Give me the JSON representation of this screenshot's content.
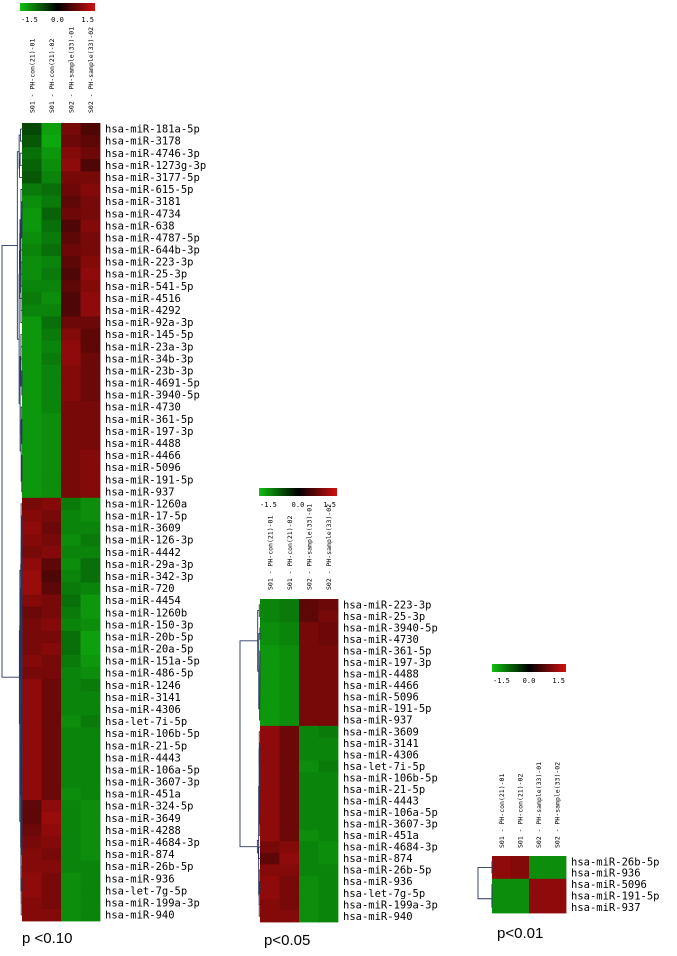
{
  "chart_data": [
    {
      "type": "heatmap",
      "caption": "p <0.10",
      "color_scale": {
        "min": -1.5,
        "mid": 0.0,
        "max": 1.5,
        "tick_labels": [
          "-1.5",
          "0.0",
          "1.5"
        ],
        "low_color": "#10c010",
        "mid_color": "#000000",
        "high_color": "#d01010"
      },
      "columns": [
        "S01 - PH-con(21)-01",
        "S01 - PH-con(21)-02",
        "S02 - PH-sample(33)-01",
        "S02 - PH-sample(33)-02"
      ],
      "rows": [
        "hsa-miR-181a-5p",
        "hsa-miR-3178",
        "hsa-miR-4746-3p",
        "hsa-miR-1273g-3p",
        "hsa-miR-3177-5p",
        "hsa-miR-615-5p",
        "hsa-miR-3181",
        "hsa-miR-4734",
        "hsa-miR-638",
        "hsa-miR-4787-5p",
        "hsa-miR-644b-3p",
        "hsa-miR-223-3p",
        "hsa-miR-25-3p",
        "hsa-miR-541-5p",
        "hsa-miR-4516",
        "hsa-miR-4292",
        "hsa-miR-92a-3p",
        "hsa-miR-145-5p",
        "hsa-miR-23a-3p",
        "hsa-miR-34b-3p",
        "hsa-miR-23b-3p",
        "hsa-miR-4691-5p",
        "hsa-miR-3940-5p",
        "hsa-miR-4730",
        "hsa-miR-361-5p",
        "hsa-miR-197-3p",
        "hsa-miR-4488",
        "hsa-miR-4466",
        "hsa-miR-5096",
        "hsa-miR-191-5p",
        "hsa-miR-937",
        "hsa-miR-1260a",
        "hsa-miR-17-5p",
        "hsa-miR-3609",
        "hsa-miR-126-3p",
        "hsa-miR-4442",
        "hsa-miR-29a-3p",
        "hsa-miR-342-3p",
        "hsa-miR-720",
        "hsa-miR-4454",
        "hsa-miR-1260b",
        "hsa-miR-150-3p",
        "hsa-miR-20b-5p",
        "hsa-miR-20a-5p",
        "hsa-miR-151a-5p",
        "hsa-miR-486-5p",
        "hsa-miR-1246",
        "hsa-miR-3141",
        "hsa-miR-4306",
        "hsa-let-7i-5p",
        "hsa-miR-106b-5p",
        "hsa-miR-21-5p",
        "hsa-miR-4443",
        "hsa-miR-106a-5p",
        "hsa-miR-3607-3p",
        "hsa-miR-451a",
        "hsa-miR-324-5p",
        "hsa-miR-3649",
        "hsa-miR-4288",
        "hsa-miR-4684-3p",
        "hsa-miR-874",
        "hsa-miR-26b-5p",
        "hsa-miR-936",
        "hsa-let-7g-5p",
        "hsa-miR-199a-3p",
        "hsa-miR-940"
      ],
      "values": [
        [
          -0.3,
          -1.1,
          0.6,
          0.3
        ],
        [
          -0.4,
          -1.2,
          0.5,
          0.4
        ],
        [
          -0.6,
          -1.0,
          0.7,
          0.5
        ],
        [
          -0.5,
          -0.9,
          0.8,
          0.3
        ],
        [
          -0.4,
          -0.8,
          0.6,
          0.6
        ],
        [
          -0.7,
          -0.6,
          0.5,
          0.7
        ],
        [
          -0.9,
          -0.7,
          0.4,
          0.6
        ],
        [
          -1.0,
          -0.5,
          0.5,
          0.6
        ],
        [
          -1.0,
          -0.6,
          0.3,
          0.7
        ],
        [
          -0.9,
          -0.7,
          0.4,
          0.6
        ],
        [
          -0.8,
          -0.6,
          0.5,
          0.6
        ],
        [
          -0.9,
          -0.8,
          0.4,
          0.7
        ],
        [
          -0.9,
          -0.7,
          0.3,
          0.8
        ],
        [
          -0.8,
          -0.8,
          0.4,
          0.7
        ],
        [
          -0.7,
          -0.9,
          0.3,
          0.8
        ],
        [
          -0.8,
          -0.8,
          0.3,
          0.8
        ],
        [
          -1.0,
          -0.6,
          0.5,
          0.5
        ],
        [
          -1.0,
          -0.7,
          0.7,
          0.4
        ],
        [
          -1.0,
          -0.8,
          0.8,
          0.4
        ],
        [
          -1.0,
          -0.7,
          0.8,
          0.5
        ],
        [
          -1.0,
          -0.8,
          0.7,
          0.5
        ],
        [
          -1.0,
          -0.8,
          0.7,
          0.5
        ],
        [
          -1.0,
          -0.8,
          0.7,
          0.5
        ],
        [
          -1.0,
          -0.8,
          0.6,
          0.6
        ],
        [
          -1.0,
          -0.9,
          0.6,
          0.6
        ],
        [
          -1.0,
          -0.9,
          0.6,
          0.6
        ],
        [
          -1.0,
          -0.9,
          0.6,
          0.6
        ],
        [
          -1.0,
          -0.9,
          0.6,
          0.7
        ],
        [
          -1.0,
          -0.9,
          0.6,
          0.7
        ],
        [
          -1.0,
          -0.9,
          0.6,
          0.7
        ],
        [
          -1.0,
          -0.9,
          0.6,
          0.7
        ],
        [
          0.6,
          0.7,
          -0.7,
          -0.9
        ],
        [
          0.7,
          0.6,
          -0.8,
          -0.9
        ],
        [
          0.8,
          0.5,
          -0.8,
          -0.8
        ],
        [
          0.7,
          0.6,
          -0.9,
          -0.7
        ],
        [
          0.6,
          0.7,
          -0.8,
          -0.8
        ],
        [
          0.8,
          0.4,
          -0.9,
          -0.6
        ],
        [
          0.9,
          0.3,
          -0.8,
          -0.6
        ],
        [
          0.9,
          0.4,
          -0.7,
          -0.8
        ],
        [
          0.7,
          0.6,
          -0.6,
          -1.0
        ],
        [
          0.5,
          0.6,
          -0.7,
          -1.0
        ],
        [
          0.6,
          0.7,
          -0.8,
          -0.9
        ],
        [
          0.6,
          0.6,
          -0.6,
          -1.1
        ],
        [
          0.6,
          0.7,
          -0.6,
          -1.1
        ],
        [
          0.7,
          0.6,
          -0.7,
          -1.0
        ],
        [
          0.6,
          0.6,
          -0.8,
          -0.9
        ],
        [
          0.8,
          0.5,
          -0.8,
          -0.7
        ],
        [
          0.8,
          0.5,
          -0.8,
          -0.8
        ],
        [
          0.8,
          0.5,
          -0.8,
          -0.8
        ],
        [
          0.8,
          0.5,
          -0.9,
          -0.7
        ],
        [
          0.8,
          0.5,
          -0.8,
          -0.8
        ],
        [
          0.8,
          0.5,
          -0.8,
          -0.8
        ],
        [
          0.8,
          0.5,
          -0.8,
          -0.8
        ],
        [
          0.8,
          0.5,
          -0.8,
          -0.8
        ],
        [
          0.8,
          0.5,
          -0.8,
          -0.8
        ],
        [
          0.8,
          0.5,
          -0.9,
          -0.8
        ],
        [
          0.4,
          0.8,
          -0.8,
          -0.9
        ],
        [
          0.4,
          0.9,
          -0.8,
          -0.9
        ],
        [
          0.5,
          0.8,
          -0.8,
          -0.9
        ],
        [
          0.6,
          0.7,
          -0.8,
          -0.9
        ],
        [
          0.7,
          0.6,
          -0.8,
          -0.9
        ],
        [
          0.7,
          0.7,
          -0.8,
          -0.8
        ],
        [
          0.8,
          0.6,
          -0.9,
          -0.8
        ],
        [
          0.8,
          0.6,
          -0.9,
          -0.8
        ],
        [
          0.7,
          0.6,
          -0.9,
          -0.8
        ],
        [
          0.7,
          0.7,
          -0.9,
          -0.8
        ]
      ]
    },
    {
      "type": "heatmap",
      "caption": "p<0.05",
      "color_scale": {
        "min": -1.5,
        "mid": 0.0,
        "max": 1.5,
        "tick_labels": [
          "-1.5",
          "0.0",
          "1.5"
        ],
        "low_color": "#10c010",
        "mid_color": "#000000",
        "high_color": "#d01010"
      },
      "columns": [
        "S01 - PH-con(21)-01",
        "S01 - PH-con(21)-02",
        "S02 - PH-sample(33)-01",
        "S02 - PH-sample(33)-02"
      ],
      "rows": [
        "hsa-miR-223-3p",
        "hsa-miR-25-3p",
        "hsa-miR-3940-5p",
        "hsa-miR-4730",
        "hsa-miR-361-5p",
        "hsa-miR-197-3p",
        "hsa-miR-4488",
        "hsa-miR-4466",
        "hsa-miR-5096",
        "hsa-miR-191-5p",
        "hsa-miR-937",
        "hsa-miR-3609",
        "hsa-miR-3141",
        "hsa-miR-4306",
        "hsa-let-7i-5p",
        "hsa-miR-106b-5p",
        "hsa-miR-21-5p",
        "hsa-miR-4443",
        "hsa-miR-106a-5p",
        "hsa-miR-3607-3p",
        "hsa-miR-451a",
        "hsa-miR-4684-3p",
        "hsa-miR-874",
        "hsa-miR-26b-5p",
        "hsa-miR-936",
        "hsa-let-7g-5p",
        "hsa-miR-199a-3p",
        "hsa-miR-940"
      ],
      "values": [
        [
          -0.8,
          -0.7,
          0.4,
          0.5
        ],
        [
          -0.8,
          -0.7,
          0.4,
          0.6
        ],
        [
          -0.9,
          -0.8,
          0.6,
          0.5
        ],
        [
          -0.9,
          -0.8,
          0.6,
          0.5
        ],
        [
          -1.0,
          -0.9,
          0.6,
          0.6
        ],
        [
          -1.0,
          -0.9,
          0.6,
          0.6
        ],
        [
          -1.0,
          -0.9,
          0.6,
          0.6
        ],
        [
          -1.0,
          -0.9,
          0.6,
          0.6
        ],
        [
          -1.0,
          -0.9,
          0.6,
          0.6
        ],
        [
          -1.0,
          -0.9,
          0.6,
          0.6
        ],
        [
          -1.0,
          -0.9,
          0.6,
          0.6
        ],
        [
          0.8,
          0.5,
          -0.8,
          -0.7
        ],
        [
          0.8,
          0.5,
          -0.8,
          -0.8
        ],
        [
          0.8,
          0.5,
          -0.8,
          -0.8
        ],
        [
          0.8,
          0.5,
          -0.9,
          -0.7
        ],
        [
          0.8,
          0.5,
          -0.8,
          -0.8
        ],
        [
          0.8,
          0.5,
          -0.8,
          -0.8
        ],
        [
          0.8,
          0.5,
          -0.8,
          -0.8
        ],
        [
          0.8,
          0.5,
          -0.8,
          -0.8
        ],
        [
          0.8,
          0.5,
          -0.8,
          -0.8
        ],
        [
          0.8,
          0.5,
          -0.9,
          -0.8
        ],
        [
          0.6,
          0.7,
          -0.8,
          -0.9
        ],
        [
          0.4,
          0.8,
          -0.8,
          -0.9
        ],
        [
          0.7,
          0.7,
          -0.8,
          -0.8
        ],
        [
          0.8,
          0.6,
          -0.9,
          -0.8
        ],
        [
          0.8,
          0.6,
          -0.9,
          -0.8
        ],
        [
          0.7,
          0.6,
          -0.9,
          -0.8
        ],
        [
          0.7,
          0.7,
          -0.9,
          -0.8
        ]
      ]
    },
    {
      "type": "heatmap",
      "caption": "p<0.01",
      "color_scale": {
        "min": -1.5,
        "mid": 0.0,
        "max": 1.5,
        "tick_labels": [
          "-1.5",
          "0.0",
          "1.5"
        ],
        "low_color": "#10c010",
        "mid_color": "#000000",
        "high_color": "#d01010"
      },
      "columns": [
        "S01 - PH-con(21)-01",
        "S01 - PH-con(21)-02",
        "S02 - PH-sample(33)-01",
        "S02 - PH-sample(33)-02"
      ],
      "rows": [
        "hsa-miR-26b-5p",
        "hsa-miR-936",
        "hsa-miR-5096",
        "hsa-miR-191-5p",
        "hsa-miR-937"
      ],
      "values": [
        [
          0.8,
          0.7,
          -0.9,
          -0.9
        ],
        [
          0.8,
          0.7,
          -0.9,
          -0.9
        ],
        [
          -0.9,
          -0.9,
          0.8,
          0.8
        ],
        [
          -0.9,
          -0.9,
          0.8,
          0.8
        ],
        [
          -0.9,
          -0.9,
          0.8,
          0.8
        ]
      ]
    }
  ]
}
